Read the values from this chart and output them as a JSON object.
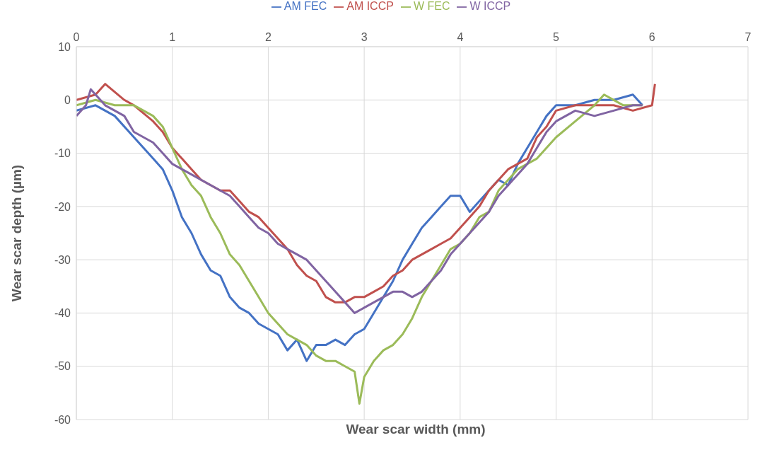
{
  "chart_data": {
    "type": "line",
    "xlabel": "Wear scar width (mm)",
    "ylabel": "Wear scar depth (µm)",
    "xlim": [
      0,
      7
    ],
    "xticks": [
      0,
      1,
      2,
      3,
      4,
      5,
      6,
      7
    ],
    "ylim": [
      -60,
      10
    ],
    "yticks": [
      -60,
      -50,
      -40,
      -30,
      -20,
      -10,
      0,
      10
    ],
    "grid": true,
    "legend": "top",
    "marker": "none",
    "line_style": "solid",
    "series": [
      {
        "name": "AM FEC",
        "color": "#4472c4",
        "x": [
          0,
          0.2,
          0.4,
          0.6,
          0.8,
          0.9,
          1.0,
          1.1,
          1.2,
          1.3,
          1.4,
          1.5,
          1.6,
          1.7,
          1.8,
          1.9,
          2.0,
          2.1,
          2.2,
          2.3,
          2.4,
          2.5,
          2.6,
          2.7,
          2.8,
          2.9,
          3.0,
          3.1,
          3.2,
          3.3,
          3.4,
          3.5,
          3.6,
          3.7,
          3.8,
          3.9,
          4.0,
          4.1,
          4.2,
          4.3,
          4.4,
          4.5,
          4.6,
          4.7,
          4.8,
          4.9,
          5.0,
          5.2,
          5.4,
          5.6,
          5.8,
          5.9
        ],
        "values": [
          -2,
          -1,
          -3,
          -7,
          -11,
          -13,
          -17,
          -22,
          -25,
          -29,
          -32,
          -33,
          -37,
          -39,
          -40,
          -42,
          -43,
          -44,
          -47,
          -45,
          -49,
          -46,
          -46,
          -45,
          -46,
          -44,
          -43,
          -40,
          -37,
          -34,
          -30,
          -27,
          -24,
          -22,
          -20,
          -18,
          -18,
          -21,
          -19,
          -17,
          -15,
          -16,
          -12,
          -9,
          -6,
          -3,
          -1,
          -1,
          0,
          0,
          1,
          -1
        ]
      },
      {
        "name": "AM ICCP",
        "color": "#c0504d",
        "x": [
          0,
          0.2,
          0.3,
          0.5,
          0.6,
          0.8,
          0.9,
          1.0,
          1.1,
          1.2,
          1.3,
          1.4,
          1.5,
          1.6,
          1.7,
          1.8,
          1.9,
          2.0,
          2.1,
          2.2,
          2.3,
          2.4,
          2.5,
          2.6,
          2.7,
          2.8,
          2.9,
          3.0,
          3.1,
          3.2,
          3.3,
          3.4,
          3.5,
          3.6,
          3.7,
          3.8,
          3.9,
          4.0,
          4.1,
          4.2,
          4.3,
          4.4,
          4.5,
          4.6,
          4.7,
          4.8,
          4.9,
          5.0,
          5.2,
          5.4,
          5.6,
          5.8,
          6.0,
          6.03
        ],
        "values": [
          0,
          1,
          3,
          0,
          -1,
          -4,
          -6,
          -9,
          -11,
          -13,
          -15,
          -16,
          -17,
          -17,
          -19,
          -21,
          -22,
          -24,
          -26,
          -28,
          -31,
          -33,
          -34,
          -37,
          -38,
          -38,
          -37,
          -37,
          -36,
          -35,
          -33,
          -32,
          -30,
          -29,
          -28,
          -27,
          -26,
          -24,
          -22,
          -20,
          -17,
          -15,
          -13,
          -12,
          -11,
          -7,
          -5,
          -2,
          -1,
          -1,
          -1,
          -2,
          -1,
          3
        ]
      },
      {
        "name": "W FEC",
        "color": "#9bbb59",
        "x": [
          0,
          0.2,
          0.4,
          0.6,
          0.7,
          0.8,
          0.9,
          1.0,
          1.1,
          1.2,
          1.3,
          1.4,
          1.5,
          1.6,
          1.7,
          1.8,
          1.9,
          2.0,
          2.1,
          2.2,
          2.3,
          2.4,
          2.5,
          2.6,
          2.7,
          2.8,
          2.9,
          2.95,
          3.0,
          3.1,
          3.2,
          3.3,
          3.4,
          3.5,
          3.6,
          3.7,
          3.8,
          3.9,
          4.0,
          4.1,
          4.2,
          4.3,
          4.4,
          4.5,
          4.6,
          4.7,
          4.8,
          4.9,
          5.0,
          5.2,
          5.4,
          5.5,
          5.7,
          5.9
        ],
        "values": [
          -1,
          0,
          -1,
          -1,
          -2,
          -3,
          -5,
          -9,
          -13,
          -16,
          -18,
          -22,
          -25,
          -29,
          -31,
          -34,
          -37,
          -40,
          -42,
          -44,
          -45,
          -46,
          -48,
          -49,
          -49,
          -50,
          -51,
          -57,
          -52,
          -49,
          -47,
          -46,
          -44,
          -41,
          -37,
          -34,
          -31,
          -28,
          -27,
          -25,
          -22,
          -21,
          -17,
          -15,
          -13,
          -12,
          -11,
          -9,
          -7,
          -4,
          -1,
          1,
          -1,
          -1
        ]
      },
      {
        "name": "W ICCP",
        "color": "#8064a2",
        "x": [
          0,
          0.1,
          0.15,
          0.3,
          0.5,
          0.6,
          0.8,
          0.9,
          1.0,
          1.1,
          1.2,
          1.3,
          1.4,
          1.5,
          1.6,
          1.7,
          1.8,
          1.9,
          2.0,
          2.1,
          2.2,
          2.3,
          2.4,
          2.5,
          2.6,
          2.7,
          2.8,
          2.9,
          3.0,
          3.1,
          3.2,
          3.3,
          3.4,
          3.5,
          3.6,
          3.7,
          3.8,
          3.9,
          4.0,
          4.1,
          4.2,
          4.3,
          4.4,
          4.5,
          4.6,
          4.7,
          4.8,
          4.9,
          5.0,
          5.2,
          5.4,
          5.6,
          5.8,
          5.9
        ],
        "values": [
          -3,
          -1,
          2,
          -1,
          -3,
          -6,
          -8,
          -10,
          -12,
          -13,
          -14,
          -15,
          -16,
          -17,
          -18,
          -20,
          -22,
          -24,
          -25,
          -27,
          -28,
          -29,
          -30,
          -32,
          -34,
          -36,
          -38,
          -40,
          -39,
          -38,
          -37,
          -36,
          -36,
          -37,
          -36,
          -34,
          -32,
          -29,
          -27,
          -25,
          -23,
          -21,
          -18,
          -16,
          -14,
          -12,
          -9,
          -6,
          -4,
          -2,
          -3,
          -2,
          -1,
          -1
        ]
      }
    ]
  }
}
